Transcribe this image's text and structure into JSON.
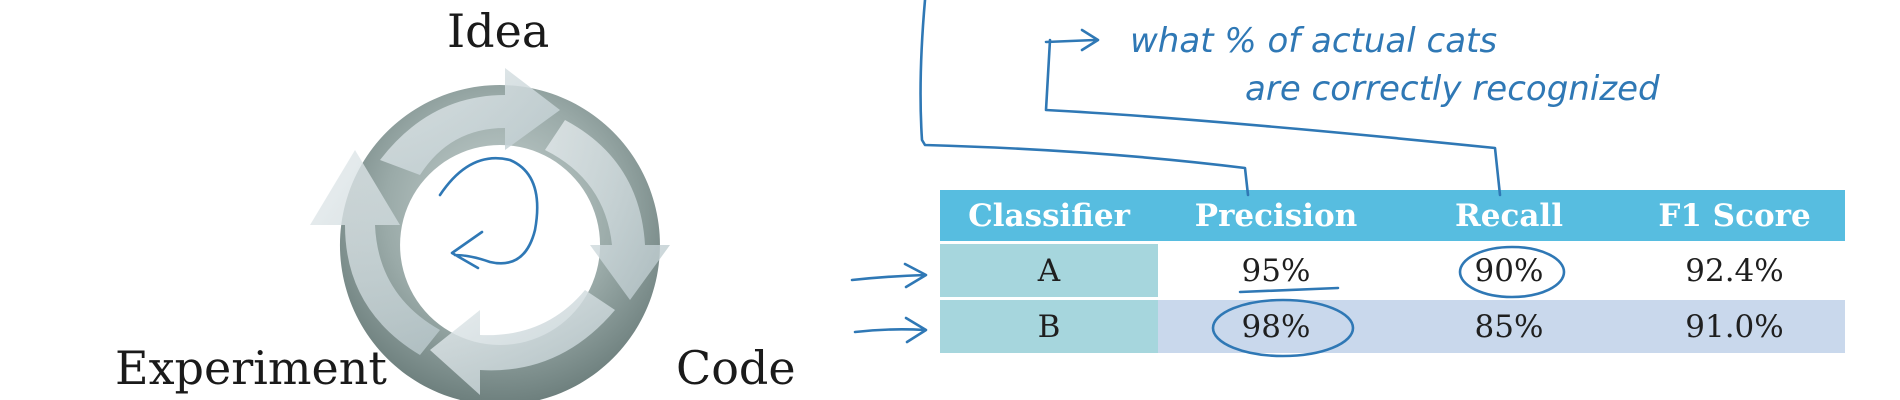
{
  "cycle": {
    "labels": {
      "idea": "Idea",
      "code": "Code",
      "experiment": "Experiment"
    }
  },
  "annotation": {
    "line1": "what % of actual cats",
    "line2": "are correctly recognized"
  },
  "table": {
    "headers": [
      "Classifier",
      "Precision",
      "Recall",
      "F1 Score"
    ],
    "rows": [
      {
        "name": "A",
        "precision": "95%",
        "recall": "90%",
        "f1": "92.4%"
      },
      {
        "name": "B",
        "precision": "98%",
        "recall": "85%",
        "f1": "91.0%"
      }
    ]
  },
  "colors": {
    "header": "#57bde0",
    "ink": "#2f78b5",
    "row_b": "#c9d8ec",
    "name_cell": "#a6d6dd"
  }
}
